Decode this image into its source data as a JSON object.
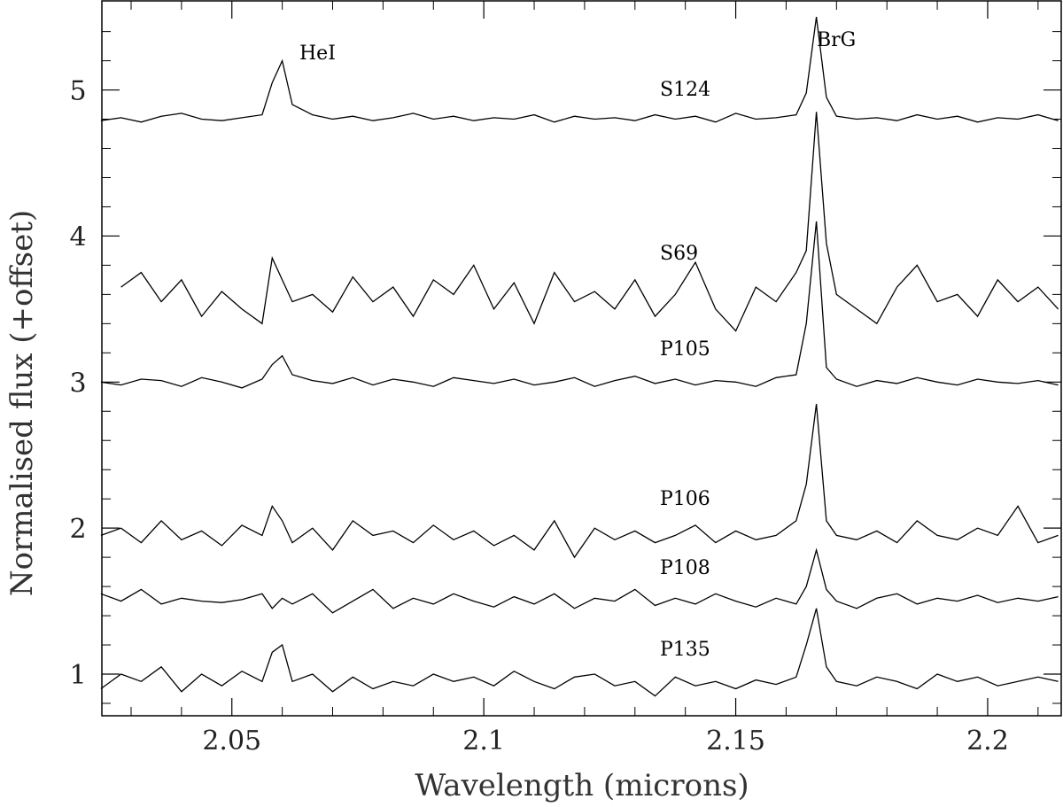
{
  "chart_data": {
    "type": "line",
    "xlabel": "Wavelength (microns)",
    "ylabel": "Normalised flux (+offset)",
    "annotations": [
      "HeI",
      "BrG"
    ],
    "x": [
      2.024,
      2.028,
      2.032,
      2.036,
      2.04,
      2.044,
      2.048,
      2.052,
      2.056,
      2.058,
      2.06,
      2.062,
      2.066,
      2.07,
      2.074,
      2.078,
      2.082,
      2.086,
      2.09,
      2.094,
      2.098,
      2.102,
      2.106,
      2.11,
      2.114,
      2.118,
      2.122,
      2.126,
      2.13,
      2.134,
      2.138,
      2.142,
      2.146,
      2.15,
      2.154,
      2.158,
      2.162,
      2.164,
      2.166,
      2.168,
      2.17,
      2.174,
      2.178,
      2.182,
      2.186,
      2.19,
      2.194,
      2.198,
      2.202,
      2.206,
      2.21,
      2.214
    ],
    "series": [
      {
        "name": "S124",
        "color": "#000000",
        "values": [
          4.79,
          4.81,
          4.78,
          4.82,
          4.84,
          4.8,
          4.79,
          4.81,
          4.83,
          5.05,
          5.2,
          4.9,
          4.83,
          4.8,
          4.82,
          4.79,
          4.81,
          4.84,
          4.8,
          4.82,
          4.79,
          4.81,
          4.8,
          4.83,
          4.78,
          4.82,
          4.8,
          4.81,
          4.79,
          4.83,
          4.8,
          4.82,
          4.78,
          4.84,
          4.8,
          4.81,
          4.83,
          4.98,
          5.5,
          4.95,
          4.82,
          4.8,
          4.81,
          4.79,
          4.83,
          4.8,
          4.82,
          4.78,
          4.81,
          4.8,
          4.83,
          4.79
        ]
      },
      {
        "name": "S69",
        "color": "#000000",
        "values": [
          null,
          3.65,
          3.75,
          3.55,
          3.7,
          3.45,
          3.62,
          3.5,
          3.4,
          3.85,
          3.7,
          3.55,
          3.6,
          3.48,
          3.72,
          3.55,
          3.65,
          3.45,
          3.7,
          3.6,
          3.8,
          3.5,
          3.68,
          3.4,
          3.75,
          3.55,
          3.62,
          3.5,
          3.7,
          3.45,
          3.6,
          3.82,
          3.5,
          3.35,
          3.65,
          3.55,
          3.75,
          3.9,
          4.85,
          3.95,
          3.6,
          3.5,
          3.4,
          3.65,
          3.8,
          3.55,
          3.6,
          3.45,
          3.7,
          3.55,
          3.65,
          3.5
        ]
      },
      {
        "name": "P105",
        "color": "#000000",
        "values": [
          3.0,
          2.98,
          3.02,
          3.01,
          2.97,
          3.03,
          3.0,
          2.96,
          3.02,
          3.12,
          3.18,
          3.05,
          3.01,
          2.99,
          3.03,
          2.98,
          3.02,
          3.0,
          2.97,
          3.03,
          3.01,
          2.99,
          3.02,
          2.98,
          3.0,
          3.03,
          2.97,
          3.01,
          3.04,
          2.99,
          3.02,
          2.98,
          3.01,
          3.0,
          2.97,
          3.03,
          3.05,
          3.4,
          4.1,
          3.1,
          3.02,
          2.97,
          3.01,
          2.99,
          3.03,
          3.0,
          2.98,
          3.02,
          3.0,
          2.99,
          3.01,
          2.98
        ]
      },
      {
        "name": "P106",
        "color": "#000000",
        "values": [
          1.95,
          2.0,
          1.9,
          2.05,
          1.92,
          1.98,
          1.88,
          2.02,
          1.95,
          2.15,
          2.05,
          1.9,
          2.0,
          1.85,
          2.05,
          1.95,
          1.98,
          1.9,
          2.02,
          1.92,
          1.98,
          1.88,
          1.95,
          1.85,
          2.05,
          1.8,
          2.0,
          1.92,
          1.98,
          1.9,
          1.95,
          2.02,
          1.9,
          1.98,
          1.92,
          1.95,
          2.05,
          2.3,
          2.85,
          2.05,
          1.95,
          1.92,
          1.98,
          1.9,
          2.05,
          1.95,
          1.92,
          2.0,
          1.95,
          2.15,
          1.9,
          1.95
        ]
      },
      {
        "name": "P108",
        "color": "#000000",
        "values": [
          1.55,
          1.5,
          1.58,
          1.48,
          1.52,
          1.5,
          1.49,
          1.51,
          1.55,
          1.45,
          1.52,
          1.48,
          1.55,
          1.42,
          1.5,
          1.58,
          1.45,
          1.52,
          1.48,
          1.55,
          1.5,
          1.46,
          1.53,
          1.48,
          1.55,
          1.45,
          1.52,
          1.5,
          1.58,
          1.47,
          1.52,
          1.48,
          1.55,
          1.5,
          1.46,
          1.52,
          1.48,
          1.6,
          1.85,
          1.58,
          1.5,
          1.45,
          1.52,
          1.55,
          1.48,
          1.52,
          1.5,
          1.54,
          1.49,
          1.52,
          1.5,
          1.53
        ]
      },
      {
        "name": "P135",
        "color": "#000000",
        "values": [
          0.9,
          1.0,
          0.95,
          1.05,
          0.88,
          1.0,
          0.92,
          1.02,
          0.95,
          1.15,
          1.2,
          0.95,
          1.0,
          0.88,
          0.98,
          0.9,
          0.95,
          0.92,
          1.0,
          0.95,
          0.98,
          0.92,
          1.02,
          0.95,
          0.9,
          0.98,
          1.0,
          0.92,
          0.95,
          0.85,
          0.98,
          0.92,
          0.95,
          0.9,
          0.96,
          0.93,
          0.98,
          1.2,
          1.45,
          1.05,
          0.95,
          0.92,
          0.98,
          0.95,
          0.9,
          1.0,
          0.95,
          0.98,
          0.92,
          0.95,
          0.98,
          0.95
        ]
      }
    ],
    "xlim": [
      2.0242,
      2.2146
    ],
    "ylim": [
      0.715,
      5.61
    ],
    "xticks": [
      2.05,
      {
        "value": 2.1,
        "label": "2.1"
      },
      2.15,
      {
        "value": 2.2,
        "label": "2.2"
      }
    ],
    "yticks": [
      1,
      2,
      3,
      4,
      5
    ],
    "xticks_minor": [
      2.03,
      2.04,
      2.06,
      2.07,
      2.08,
      2.09,
      2.11,
      2.12,
      2.13,
      2.14,
      2.16,
      2.17,
      2.18,
      2.19,
      2.21
    ],
    "yticks_minor": [
      0.8,
      1.2,
      1.4,
      1.6,
      1.8,
      2.2,
      2.4,
      2.6,
      2.8,
      3.2,
      3.4,
      3.6,
      3.8,
      4.2,
      4.4,
      4.6,
      4.8,
      5.2,
      5.4
    ]
  }
}
